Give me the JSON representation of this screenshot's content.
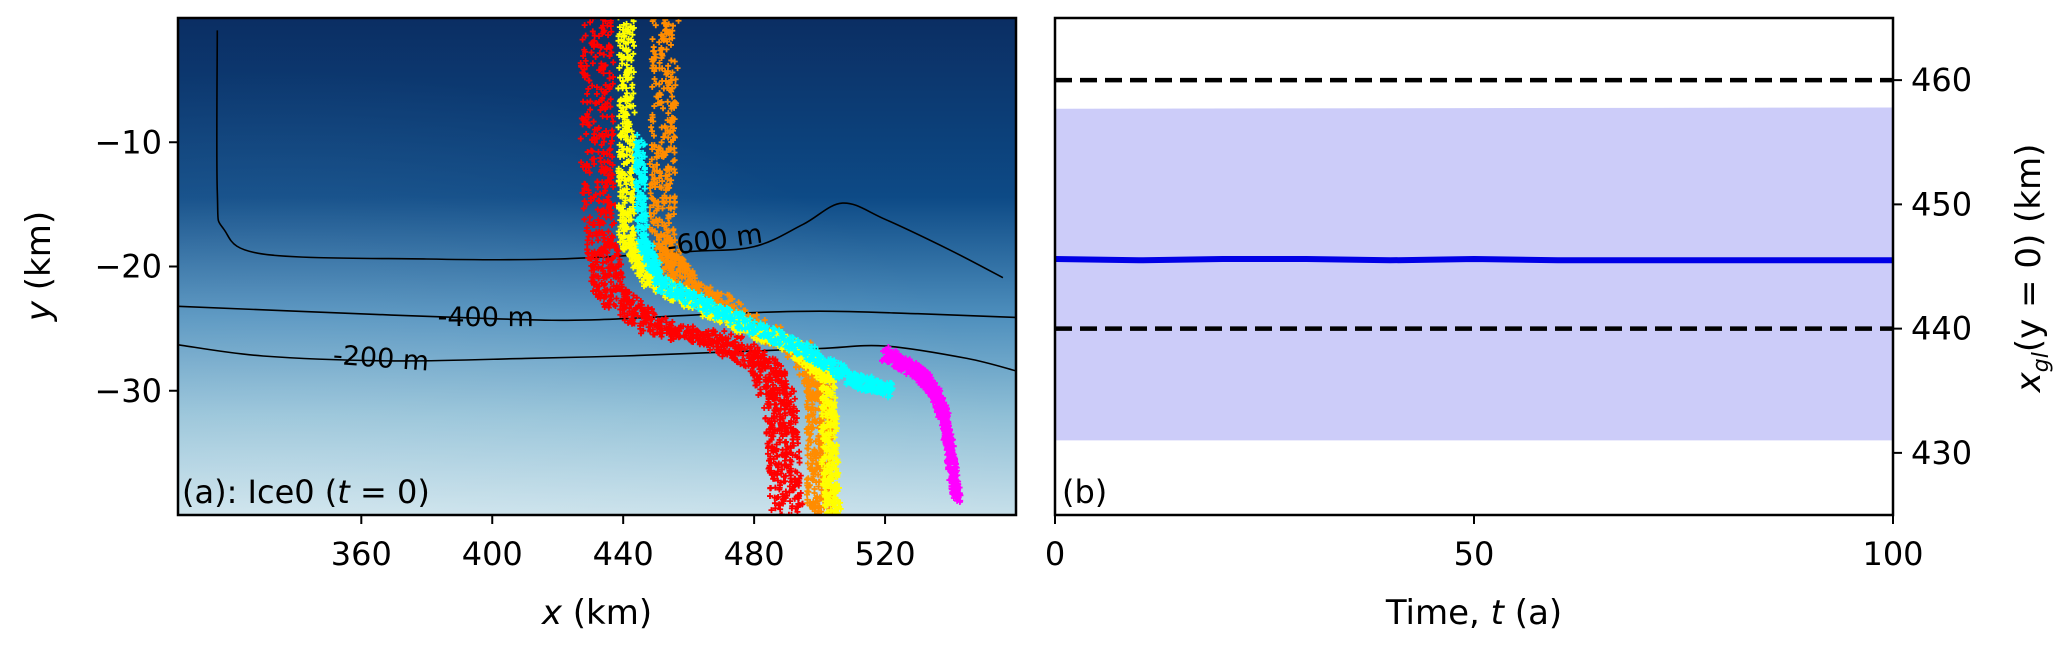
{
  "chart_data": [
    {
      "type": "heatmap",
      "panel_label_prefix": "(a): Ice0 (",
      "panel_label_var": "t",
      "panel_label_suffix": " = 0)",
      "xlabel_var": "x",
      "xlabel_unit": " (km)",
      "ylabel_var": "y",
      "ylabel_unit": " (km)",
      "xlim": [
        304,
        560
      ],
      "ylim": [
        -40,
        0
      ],
      "x_ticks": [
        360,
        400,
        440,
        480,
        520
      ],
      "y_ticks": [
        -10,
        -20,
        -30
      ],
      "colormap": [
        "#0b2e63",
        "#0d4a86",
        "#4e8fbd",
        "#8fbfd6",
        "#c7e0ea"
      ],
      "contours": [
        {
          "label": "-600 m",
          "points": [
            [
              316,
              -1
            ],
            [
              316,
              -14
            ],
            [
              318,
              -17
            ],
            [
              330,
              -19
            ],
            [
              380,
              -19.4
            ],
            [
              420,
              -19.4
            ],
            [
              460,
              -18.8
            ],
            [
              480,
              -18.4
            ],
            [
              495,
              -16.6
            ],
            [
              507,
              -14.9
            ],
            [
              520,
              -16.2
            ],
            [
              540,
              -18.7
            ],
            [
              556,
              -20.9
            ]
          ]
        },
        {
          "label": "-400 m",
          "points": [
            [
              304,
              -23.2
            ],
            [
              340,
              -23.6
            ],
            [
              400,
              -24.2
            ],
            [
              430,
              -24.3
            ],
            [
              470,
              -23.8
            ],
            [
              500,
              -23.6
            ],
            [
              530,
              -23.8
            ],
            [
              560,
              -24.1
            ]
          ]
        },
        {
          "label": "-200 m",
          "points": [
            [
              304,
              -26.3
            ],
            [
              330,
              -27.2
            ],
            [
              370,
              -27.6
            ],
            [
              410,
              -27.4
            ],
            [
              440,
              -27.2
            ],
            [
              470,
              -26.9
            ],
            [
              500,
              -26.6
            ],
            [
              520,
              -26.4
            ],
            [
              545,
              -27.4
            ],
            [
              560,
              -28.4
            ]
          ]
        }
      ],
      "grounding_line_clusters": [
        {
          "color": "#ff0000",
          "path": [
            [
              432,
              0
            ],
            [
              432,
              -10
            ],
            [
              433,
              -18
            ],
            [
              436,
              -22
            ],
            [
              450,
              -25
            ],
            [
              470,
              -26
            ],
            [
              483,
              -28
            ],
            [
              488,
              -31
            ],
            [
              489,
              -35
            ],
            [
              490,
              -40
            ]
          ],
          "spread": 5
        },
        {
          "color": "#ff8c00",
          "path": [
            [
              453,
              0
            ],
            [
              452,
              -10
            ],
            [
              452,
              -18
            ],
            [
              458,
              -21
            ],
            [
              478,
              -24.5
            ],
            [
              496,
              -27
            ],
            [
              500,
              -30
            ],
            [
              500,
              -35
            ],
            [
              500,
              -40
            ]
          ],
          "spread": 4
        },
        {
          "color": "#ffff00",
          "path": [
            [
              441,
              0
            ],
            [
              441,
              -10
            ],
            [
              441,
              -18
            ],
            [
              448,
              -21
            ],
            [
              470,
              -24
            ],
            [
              492,
              -26.5
            ],
            [
              503,
              -29
            ],
            [
              503,
              -35
            ],
            [
              504,
              -40
            ]
          ],
          "spread": 2.5
        },
        {
          "color": "#00ffff",
          "path": [
            [
              445,
              -10
            ],
            [
              446,
              -18
            ],
            [
              452,
              -21.5
            ],
            [
              472,
              -24
            ],
            [
              494,
              -26.5
            ],
            [
              510,
              -29
            ],
            [
              522,
              -30
            ]
          ],
          "spread": 1.5
        },
        {
          "color": "#ff00ff",
          "path": [
            [
              520,
              -27
            ],
            [
              530,
              -28.5
            ],
            [
              535,
              -30
            ],
            [
              538,
              -32
            ],
            [
              540,
              -35
            ],
            [
              542,
              -39
            ]
          ],
          "spread": 1.2
        }
      ]
    },
    {
      "type": "line",
      "panel_label": "(b)",
      "xlabel_prefix": "Time, ",
      "xlabel_var": "t",
      "xlabel_suffix": " (a)",
      "ylabel_var": "x",
      "ylabel_sub": "gl",
      "ylabel_suffix": "(y = 0) (km)",
      "xlim": [
        0,
        100
      ],
      "ylim": [
        425,
        465
      ],
      "x_ticks": [
        0,
        50,
        100
      ],
      "y_ticks": [
        430,
        440,
        450,
        460
      ],
      "y_axis_side": "right",
      "series": [
        {
          "color": "#0000e6",
          "x": [
            0,
            10,
            20,
            30,
            40,
            50,
            60,
            70,
            80,
            90,
            100
          ],
          "values": [
            445.6,
            445.5,
            445.6,
            445.6,
            445.5,
            445.6,
            445.5,
            445.5,
            445.5,
            445.5,
            445.5
          ]
        }
      ],
      "band": {
        "color": "#ccccf9",
        "x": [
          0,
          100
        ],
        "lower": [
          431,
          431
        ],
        "upper": [
          457.7,
          457.8
        ]
      },
      "reference_lines": [
        {
          "y": 460,
          "style": "dashed",
          "color": "#000000"
        },
        {
          "y": 440,
          "style": "dashed",
          "color": "#000000"
        }
      ]
    }
  ]
}
